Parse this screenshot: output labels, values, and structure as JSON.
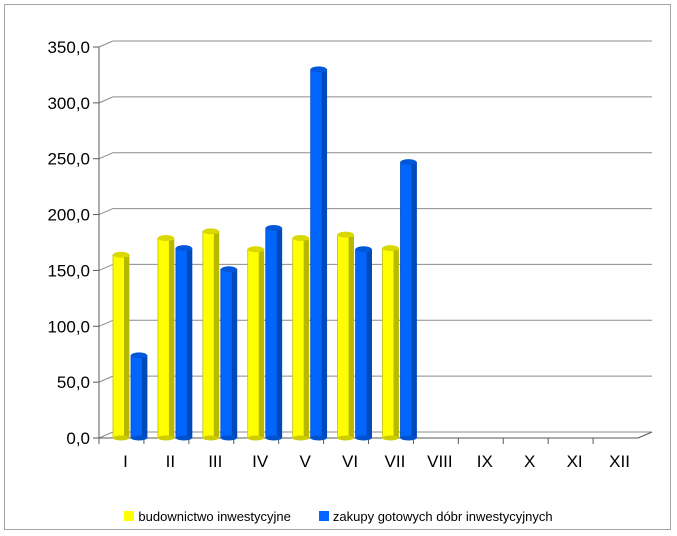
{
  "chart_data": {
    "type": "bar",
    "categories": [
      "I",
      "II",
      "III",
      "IV",
      "V",
      "VI",
      "VII",
      "VIII",
      "IX",
      "X",
      "XI",
      "XII"
    ],
    "series": [
      {
        "name": "budownictwo inwestycyjne",
        "color": "#ffff00",
        "values": [
          164,
          179,
          185,
          169,
          179,
          182,
          170,
          null,
          null,
          null,
          null,
          null
        ]
      },
      {
        "name": "zakupy gotowych dóbr inwestycyjnych",
        "color": "#0066ff",
        "values": [
          74,
          170,
          151,
          188,
          330,
          169,
          247,
          null,
          null,
          null,
          null,
          null
        ]
      }
    ],
    "ylim": [
      0,
      350
    ],
    "yticks": [
      "0,0",
      "50,0",
      "100,0",
      "150,0",
      "200,0",
      "250,0",
      "300,0",
      "350,0"
    ],
    "grid": true,
    "legend_position": "bottom"
  }
}
